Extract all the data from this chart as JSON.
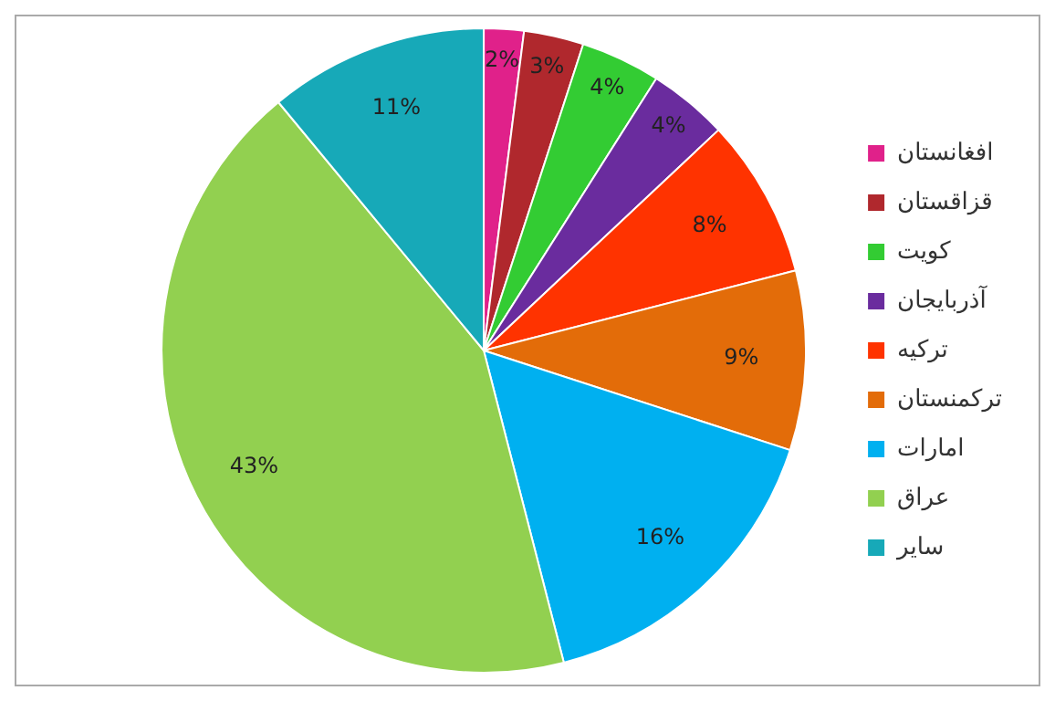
{
  "chart_data": {
    "type": "pie",
    "categories": [
      "افغانستان",
      "قزاقستان",
      "کویت",
      "آذربایجان",
      "ترکیه",
      "ترکمنستان",
      "امارات",
      "عراق",
      "سایر"
    ],
    "values": [
      2,
      3,
      4,
      4,
      8,
      9,
      16,
      43,
      11
    ],
    "value_labels": [
      "2%",
      "3%",
      "4%",
      "4%",
      "8%",
      "9%",
      "16%",
      "43%",
      "11%"
    ],
    "colors": [
      "#e0218a",
      "#b0282d",
      "#33cc33",
      "#6a2c9e",
      "#ff3300",
      "#e36c09",
      "#00b0f0",
      "#92d050",
      "#17a9b8"
    ],
    "legend": "right"
  }
}
